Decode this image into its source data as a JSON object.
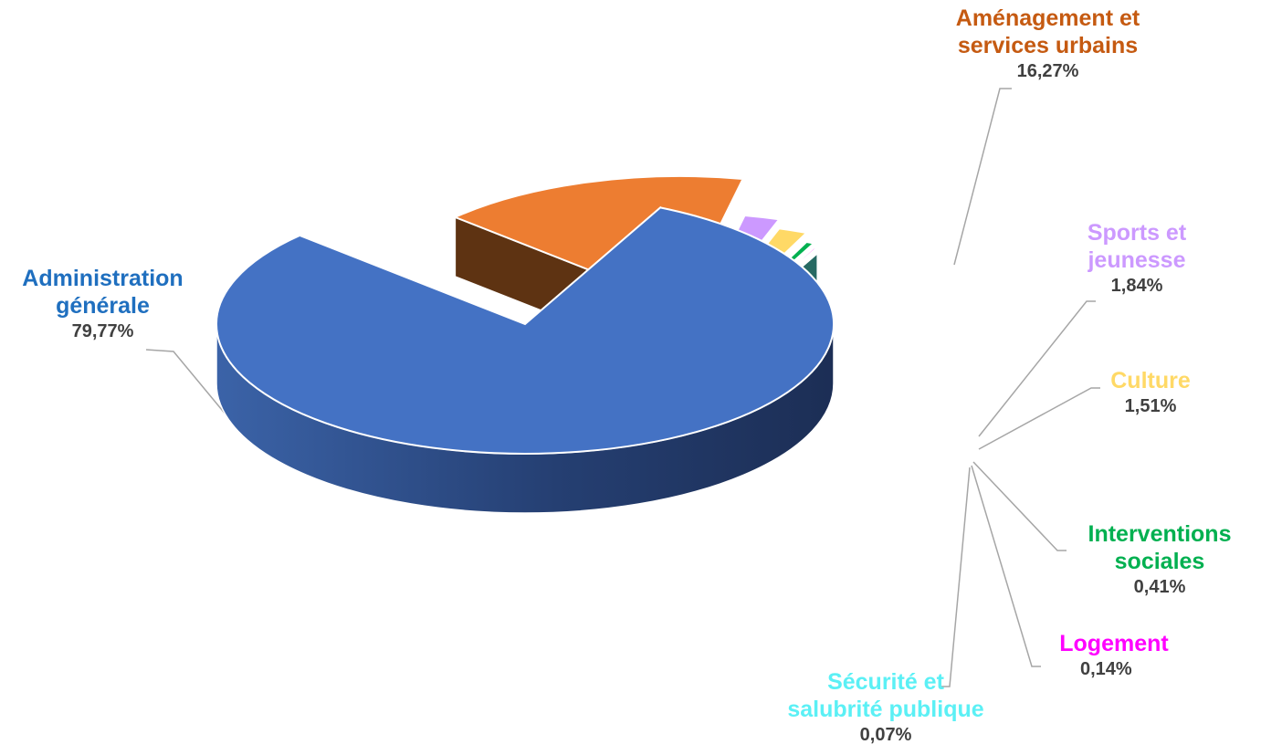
{
  "chart_data": {
    "type": "pie",
    "style": "3d-exploded",
    "legend": "none",
    "data_labels": "outside-with-leader-lines",
    "slices": [
      {
        "name_lines": [
          "Administration",
          "générale"
        ],
        "value": 79.77,
        "value_label": "79,77%",
        "color": "#4472C4",
        "side_color": "#2A4480",
        "label_color": "#1F6FBF"
      },
      {
        "name_lines": [
          "Aménagement et",
          "services urbains"
        ],
        "value": 16.27,
        "value_label": "16,27%",
        "color": "#ED7D31",
        "side_color": "#5E3312",
        "label_color": "#C55A11"
      },
      {
        "name_lines": [
          "Sports et",
          "jeunesse"
        ],
        "value": 1.84,
        "value_label": "1,84%",
        "color": "#CC99FF",
        "side_color": "#6E4A99",
        "label_color": "#CC99FF"
      },
      {
        "name_lines": [
          "Culture"
        ],
        "value": 1.51,
        "value_label": "1,51%",
        "color": "#FFD966",
        "side_color": "#8A6A1A",
        "label_color": "#FFD966"
      },
      {
        "name_lines": [
          "Interventions",
          "sociales"
        ],
        "value": 0.41,
        "value_label": "0,41%",
        "color": "#00B050",
        "side_color": "#005A28",
        "label_color": "#00B050"
      },
      {
        "name_lines": [
          "Logement"
        ],
        "value": 0.14,
        "value_label": "0,14%",
        "color": "#FF00FF",
        "side_color": "#7A007A",
        "label_color": "#FF00FF"
      },
      {
        "name_lines": [
          "Sécurité et",
          "salubrité publique"
        ],
        "value": 0.07,
        "value_label": "0,07%",
        "color": "#66FFFF",
        "side_color": "#2A7A7A",
        "label_color": "#5BF0F5"
      }
    ],
    "teal_side_color": "#276A63"
  }
}
